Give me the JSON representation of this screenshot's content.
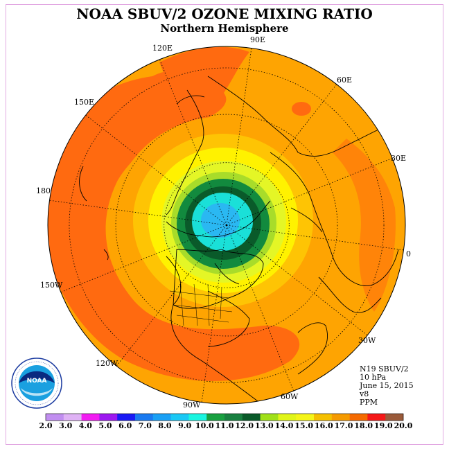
{
  "title": "NOAA SBUV/2 OZONE MIXING RATIO",
  "subtitle": "Northern Hemisphere",
  "longitude_labels": [
    {
      "name": "lon-0",
      "text": "0"
    },
    {
      "name": "lon-30e",
      "text": "30E"
    },
    {
      "name": "lon-60e",
      "text": "60E"
    },
    {
      "name": "lon-90e",
      "text": "90E"
    },
    {
      "name": "lon-120e",
      "text": "120E"
    },
    {
      "name": "lon-150e",
      "text": "150E"
    },
    {
      "name": "lon-180",
      "text": "180"
    },
    {
      "name": "lon-150w",
      "text": "150W"
    },
    {
      "name": "lon-120w",
      "text": "120W"
    },
    {
      "name": "lon-90w",
      "text": "90W"
    },
    {
      "name": "lon-60w",
      "text": "60W"
    },
    {
      "name": "lon-30w",
      "text": "30W"
    }
  ],
  "info": {
    "satellite": "N19 SBUV/2",
    "level": "10 hPa",
    "date": "June 15, 2015",
    "version": "v8",
    "units": "PPM"
  },
  "logo": {
    "text": "NOAA",
    "ring_text": "NATIONAL OCEANIC AND ATMOSPHERIC ADMINISTRATION · U.S. DEPARTMENT OF COMMERCE"
  },
  "colorbar": {
    "ticks": [
      "2.0",
      "3.0",
      "4.0",
      "5.0",
      "6.0",
      "7.0",
      "8.0",
      "9.0",
      "10.0",
      "11.0",
      "12.0",
      "13.0",
      "14.0",
      "15.0",
      "16.0",
      "17.0",
      "18.0",
      "19.0",
      "20.0"
    ],
    "colors": [
      "#c18ef0",
      "#dfb2f5",
      "#f21cf2",
      "#9d18f0",
      "#1a1af5",
      "#1a7af0",
      "#1aa0f5",
      "#1ac8f5",
      "#1af5e0",
      "#18a040",
      "#188040",
      "#0a5a2a",
      "#a0e018",
      "#e0f518",
      "#f5f518",
      "#f5c000",
      "#f59a00",
      "#f56a00",
      "#f51818",
      "#9a5a3a"
    ]
  },
  "contour_levels": [
    {
      "name": "band-17",
      "color": "#fea402"
    },
    {
      "name": "band-16",
      "color": "#fec404"
    },
    {
      "name": "band-15",
      "color": "#fff200"
    },
    {
      "name": "band-14",
      "color": "#e4f626"
    },
    {
      "name": "band-13",
      "color": "#a8dc2a"
    },
    {
      "name": "band-12",
      "color": "#128a3e"
    },
    {
      "name": "band-11",
      "color": "#0a5a2a"
    },
    {
      "name": "band-10",
      "color": "#1ae0d8"
    },
    {
      "name": "band-9",
      "color": "#2ab8f2"
    }
  ],
  "orange_dark": "#ff6a10"
}
